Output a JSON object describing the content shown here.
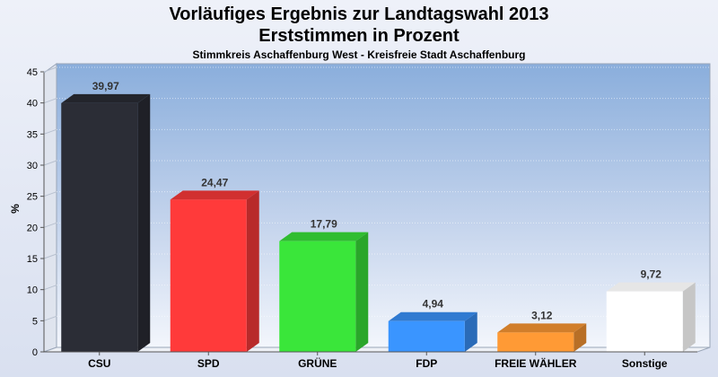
{
  "chart_data": {
    "type": "bar",
    "title": "Vorläufiges Ergebnis zur Landtagswahl 2013\nErststimmen in Prozent",
    "title_line1": "Vorläufiges Ergebnis zur Landtagswahl 2013",
    "title_line2": "Erststimmen in Prozent",
    "subtitle": "Stimmkreis Aschaffenburg West - Kreisfreie Stadt Aschaffenburg",
    "xlabel": "",
    "ylabel": "%",
    "ylim": [
      0,
      45
    ],
    "yticks": [
      0,
      5,
      10,
      15,
      20,
      25,
      30,
      35,
      40,
      45
    ],
    "grid": true,
    "categories": [
      "CSU",
      "SPD",
      "GRÜNE",
      "FDP",
      "FREIE WÄHLER",
      "Sonstige"
    ],
    "values": [
      39.97,
      24.47,
      17.79,
      4.94,
      3.12,
      9.72
    ],
    "value_labels": [
      "39,97",
      "24,47",
      "17,79",
      "4,94",
      "3,12",
      "9,72"
    ],
    "colors": [
      "#2b2d36",
      "#ff3a3a",
      "#3ae63a",
      "#3a95ff",
      "#ff9a35",
      "#ffffff"
    ]
  }
}
